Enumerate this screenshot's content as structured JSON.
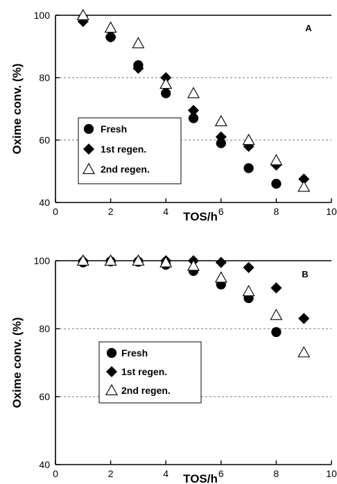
{
  "chart_data": [
    {
      "type": "scatter",
      "panel_label": "A",
      "xlabel": "TOS/h",
      "ylabel": "Oxime conv. (%)",
      "xlim": [
        0,
        10
      ],
      "ylim": [
        40,
        100
      ],
      "xticks": [
        0,
        2,
        4,
        6,
        8,
        10
      ],
      "yticks": [
        40,
        60,
        80,
        100
      ],
      "grid": "horizontal dashed at 60 and 80",
      "legend_position": "lower-left",
      "series": [
        {
          "name": "Fresh",
          "marker": "circle",
          "x": [
            1,
            2,
            3,
            4,
            5,
            6,
            7,
            8
          ],
          "y": [
            99,
            93,
            84,
            75,
            67,
            59,
            51,
            46
          ]
        },
        {
          "name": "1st regen.",
          "marker": "diamond",
          "x": [
            1,
            2,
            3,
            4,
            5,
            6,
            7,
            8,
            9
          ],
          "y": [
            98,
            93,
            83,
            80,
            69.5,
            61,
            58,
            52,
            47.5
          ]
        },
        {
          "name": "2nd regen.",
          "marker": "triangle-open",
          "x": [
            1,
            2,
            3,
            4,
            5,
            6,
            7,
            8,
            9
          ],
          "y": [
            100,
            96,
            91,
            78,
            75,
            66,
            60,
            53.5,
            45
          ]
        }
      ]
    },
    {
      "type": "scatter",
      "panel_label": "B",
      "xlabel": "TOS/h",
      "ylabel": "Oxime conv. (%)",
      "xlim": [
        0,
        10
      ],
      "ylim": [
        40,
        100
      ],
      "xticks": [
        0,
        2,
        4,
        6,
        8,
        10
      ],
      "yticks": [
        40,
        60,
        80,
        100
      ],
      "grid": "horizontal dashed at 60 and 80",
      "legend_position": "lower-left",
      "series": [
        {
          "name": "Fresh",
          "marker": "circle",
          "x": [
            1,
            2,
            3,
            4,
            5,
            6,
            7,
            8
          ],
          "y": [
            99.5,
            99.8,
            99.7,
            98.8,
            97,
            93,
            89,
            79
          ]
        },
        {
          "name": "1st regen.",
          "marker": "diamond",
          "x": [
            1,
            2,
            3,
            4,
            5,
            6,
            7,
            8,
            9
          ],
          "y": [
            100,
            100,
            100,
            100,
            100,
            99.5,
            98,
            92,
            83
          ]
        },
        {
          "name": "2nd regen.",
          "marker": "triangle-open",
          "x": [
            1,
            2,
            3,
            4,
            5,
            6,
            7,
            8,
            9
          ],
          "y": [
            100,
            100,
            100,
            99.5,
            98.5,
            95,
            91,
            84,
            73
          ]
        }
      ]
    }
  ]
}
